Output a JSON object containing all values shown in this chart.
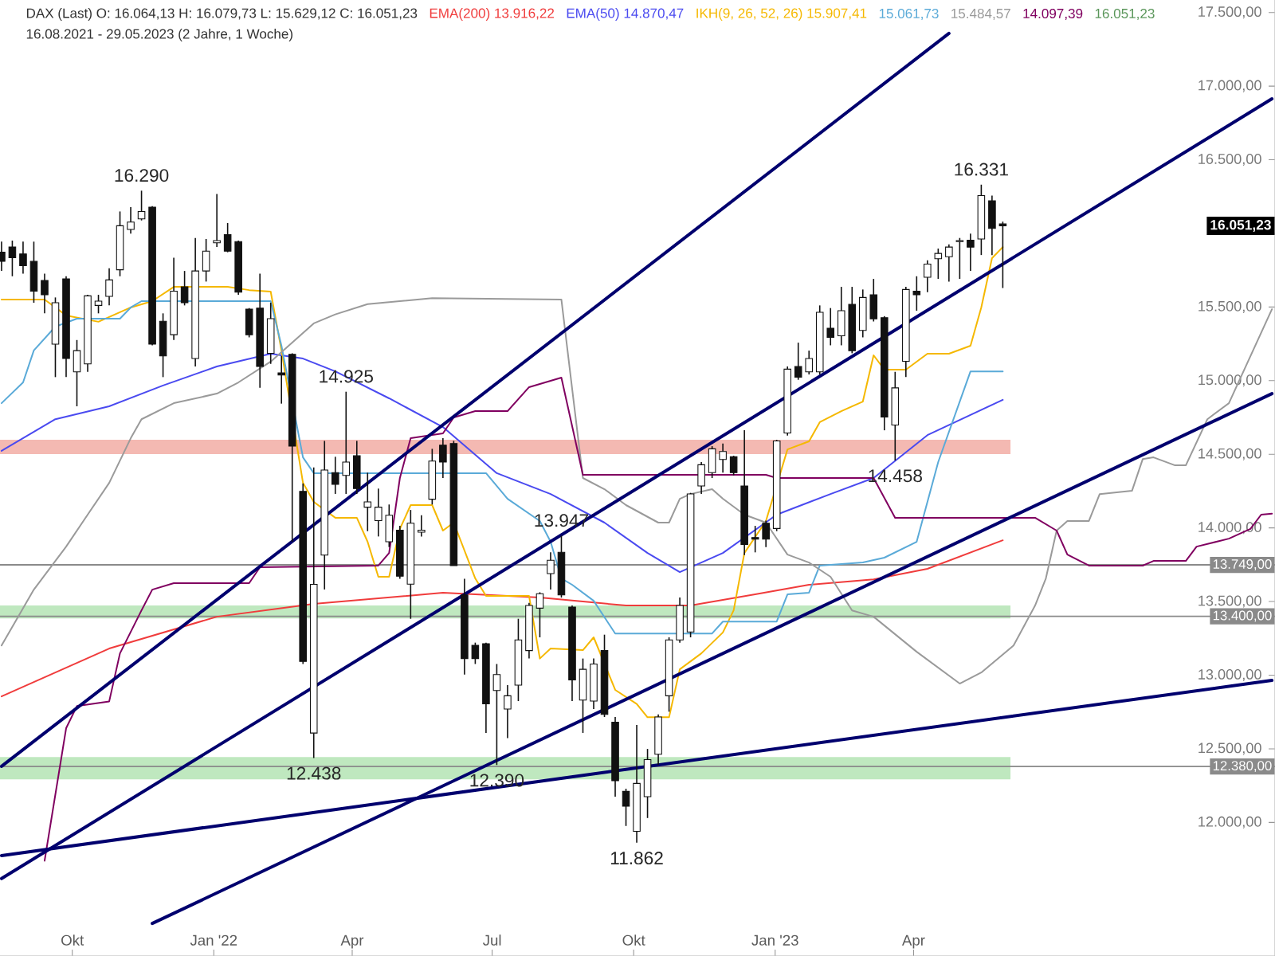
{
  "chart_data": {
    "type": "candlestick",
    "title": "DAX (Last)  O: 16.064,13  H: 16.079,73  L: 15.629,12  C: 16.051,23",
    "subtitle": "16.08.2021 - 29.05.2023  (2 Jahre, 1 Woche)",
    "xlim": [
      "2021-08-15",
      "2023-11-22"
    ],
    "ylim": [
      11093,
      17585
    ],
    "xticks": [
      {
        "value": "2021-10-01",
        "label": "Okt"
      },
      {
        "value": "2022-01-01",
        "label": "Jan '22"
      },
      {
        "value": "2022-04-01",
        "label": "Apr"
      },
      {
        "value": "2022-07-01",
        "label": "Jul"
      },
      {
        "value": "2022-10-01",
        "label": "Okt"
      },
      {
        "value": "2023-01-01",
        "label": "Jan '23"
      },
      {
        "value": "2023-04-01",
        "label": "Apr"
      }
    ],
    "yticks": [
      {
        "value": 12000,
        "label": "12.000,00"
      },
      {
        "value": 12500,
        "label": "12.500,00"
      },
      {
        "value": 13000,
        "label": "13.000,00"
      },
      {
        "value": 13500,
        "label": "13.500,00"
      },
      {
        "value": 14000,
        "label": "14.000,00"
      },
      {
        "value": 14500,
        "label": "14.500,00"
      },
      {
        "value": 15000,
        "label": "15.000,00"
      },
      {
        "value": 15500,
        "label": "15.500,00"
      },
      {
        "value": 16000,
        "label": null
      },
      {
        "value": 16500,
        "label": "16.500,00"
      },
      {
        "value": 17000,
        "label": "17.000,00"
      },
      {
        "value": 17500,
        "label": "17.500,00"
      }
    ],
    "legend": "top",
    "bands": [
      {
        "axis": "y",
        "from": 14501,
        "to": 14599,
        "color": "#f4b9b2"
      },
      {
        "axis": "y",
        "from": 13386,
        "to": 13473,
        "color": "#bfe8bf"
      },
      {
        "axis": "y",
        "from": 12292,
        "to": 12444,
        "color": "#bfe8bf"
      }
    ],
    "ref_lines": [
      {
        "axis": "y",
        "value": 13749,
        "label": "13.749,00",
        "color": "#8a8a8a"
      },
      {
        "axis": "y",
        "value": 13400,
        "label": "13.400,00",
        "color": "#8a8a8a"
      },
      {
        "axis": "y",
        "value": 12380,
        "label": "12.380,00",
        "color": "#8a8a8a"
      }
    ],
    "series": [
      {
        "type": "line",
        "name": "EMA(200) 13.916,22",
        "color": "#f03c3c",
        "x": [
          "2021-08-16",
          "2021-10-25",
          "2022-01-03",
          "2022-03-07",
          "2022-05-30",
          "2022-08-01",
          "2022-09-26",
          "2022-11-07",
          "2022-12-19",
          "2023-01-23",
          "2023-03-06",
          "2023-04-10",
          "2023-05-29"
        ],
        "values": [
          12856,
          13181,
          13397,
          13484,
          13560,
          13527,
          13473,
          13473,
          13549,
          13614,
          13650,
          13722,
          13916
        ]
      },
      {
        "type": "line",
        "name": "EMA(50) 14.870,47",
        "color": "#4a4af0",
        "x": [
          "2021-08-16",
          "2021-09-20",
          "2021-10-25",
          "2021-11-29",
          "2022-01-03",
          "2022-02-07",
          "2022-02-28",
          "2022-03-21",
          "2022-04-25",
          "2022-05-30",
          "2022-07-04",
          "2022-08-08",
          "2022-09-12",
          "2022-10-10",
          "2022-10-31",
          "2022-11-28",
          "2023-01-02",
          "2023-02-06",
          "2023-03-06",
          "2023-04-10",
          "2023-05-29"
        ],
        "values": [
          14523,
          14738,
          14826,
          14967,
          15096,
          15183,
          15150,
          15063,
          14880,
          14685,
          14372,
          14230,
          14036,
          13830,
          13700,
          13830,
          14090,
          14230,
          14339,
          14630,
          14870
        ]
      },
      {
        "type": "line",
        "name": "IKH(9, 26, 52, 26) 15.907,41",
        "color": "#f5b800",
        "x": [
          "2021-08-16",
          "2021-09-13",
          "2021-09-27",
          "2021-10-18",
          "2021-11-08",
          "2021-11-22",
          "2021-12-06",
          "2022-01-10",
          "2022-01-24",
          "2022-02-07",
          "2022-02-14",
          "2022-02-28",
          "2022-03-07",
          "2022-03-21",
          "2022-04-04",
          "2022-04-11",
          "2022-04-18",
          "2022-04-25",
          "2022-05-02",
          "2022-05-09",
          "2022-05-23",
          "2022-05-30",
          "2022-06-06",
          "2022-06-20",
          "2022-06-27",
          "2022-07-25",
          "2022-08-01",
          "2022-08-08",
          "2022-08-29",
          "2022-09-05",
          "2022-09-19",
          "2022-10-03",
          "2022-10-10",
          "2022-10-24",
          "2022-10-31",
          "2022-11-14",
          "2022-11-28",
          "2022-12-05",
          "2022-12-12",
          "2022-12-26",
          "2023-01-09",
          "2023-01-23",
          "2023-01-30",
          "2023-02-13",
          "2023-02-27",
          "2023-03-06",
          "2023-03-13",
          "2023-03-27",
          "2023-04-10",
          "2023-04-24",
          "2023-05-08",
          "2023-05-15",
          "2023-05-22",
          "2023-05-29"
        ],
        "values": [
          15551,
          15551,
          15443,
          15400,
          15497,
          15540,
          15637,
          15637,
          15615,
          15605,
          15205,
          14306,
          14177,
          14069,
          14069,
          13906,
          13668,
          13668,
          13993,
          14155,
          14155,
          13982,
          14036,
          13657,
          13538,
          13538,
          13113,
          13181,
          13170,
          13257,
          12900,
          12805,
          12714,
          12714,
          13040,
          13148,
          13290,
          13440,
          13830,
          14047,
          14533,
          14588,
          14718,
          14793,
          14858,
          15172,
          15075,
          15075,
          15183,
          15183,
          15237,
          15497,
          15832,
          15907
        ]
      },
      {
        "type": "line",
        "name": "15.061,73",
        "color": "#5aaad8",
        "x": [
          "2021-08-16",
          "2021-08-30",
          "2021-09-06",
          "2021-09-20",
          "2021-10-04",
          "2021-11-01",
          "2021-11-08",
          "2021-11-15",
          "2022-02-07",
          "2022-02-14",
          "2022-02-28",
          "2022-03-07",
          "2022-06-27",
          "2022-07-11",
          "2022-08-01",
          "2022-08-08",
          "2022-08-15",
          "2022-08-22",
          "2022-09-05",
          "2022-09-19",
          "2022-11-21",
          "2022-11-28",
          "2023-01-02",
          "2023-01-09",
          "2023-01-23",
          "2023-01-30",
          "2023-02-27",
          "2023-03-13",
          "2023-04-03",
          "2023-04-17",
          "2023-05-08",
          "2023-05-29"
        ],
        "values": [
          14847,
          14988,
          15205,
          15367,
          15421,
          15421,
          15497,
          15540,
          15540,
          15237,
          14479,
          14372,
          14372,
          14198,
          14047,
          13906,
          13657,
          13614,
          13505,
          13283,
          13283,
          13364,
          13364,
          13549,
          13560,
          13744,
          13765,
          13798,
          13906,
          14447,
          15063,
          15062
        ]
      },
      {
        "type": "line",
        "name": "15.484,57",
        "color": "#9a9a9a",
        "x": [
          "2021-08-16",
          "2021-09-06",
          "2021-09-27",
          "2021-10-11",
          "2021-10-25",
          "2021-11-08",
          "2021-11-15",
          "2021-12-06",
          "2022-01-03",
          "2022-01-17",
          "2022-02-07",
          "2022-02-21",
          "2022-03-07",
          "2022-03-21",
          "2022-04-11",
          "2022-05-23",
          "2022-08-15",
          "2022-08-29",
          "2022-09-12",
          "2022-09-26",
          "2022-10-17",
          "2022-10-24",
          "2022-10-31",
          "2022-11-07",
          "2022-11-21",
          "2022-11-28",
          "2022-12-05",
          "2022-12-12",
          "2022-12-26",
          "2023-01-09",
          "2023-01-23",
          "2023-02-06",
          "2023-02-20",
          "2023-03-06",
          "2023-03-20",
          "2023-04-03",
          "2023-05-01",
          "2023-05-15",
          "2023-06-05",
          "2023-06-19",
          "2023-06-26",
          "2023-07-03",
          "2023-07-10",
          "2023-07-24",
          "2023-07-31",
          "2023-08-21",
          "2023-08-28",
          "2023-09-04",
          "2023-09-18",
          "2023-09-25",
          "2023-10-09",
          "2023-10-23",
          "2023-11-20"
        ],
        "values": [
          13202,
          13581,
          13873,
          14090,
          14306,
          14609,
          14738,
          14847,
          14912,
          14988,
          15129,
          15259,
          15389,
          15450,
          15520,
          15560,
          15551,
          14339,
          14263,
          14155,
          14036,
          14036,
          14198,
          14230,
          14263,
          14198,
          14144,
          14090,
          14036,
          13819,
          13765,
          13668,
          13440,
          13397,
          13278,
          13159,
          12943,
          13018,
          13202,
          13473,
          13657,
          13982,
          14047,
          14047,
          14230,
          14252,
          14468,
          14479,
          14425,
          14425,
          14738,
          14847,
          15485
        ]
      },
      {
        "type": "line",
        "name": "14.097,39",
        "color": "#800060",
        "x": [
          "2021-09-13",
          "2021-09-27",
          "2021-10-04",
          "2021-10-25",
          "2021-11-01",
          "2021-11-15",
          "2021-11-22",
          "2021-12-06",
          "2022-01-24",
          "2022-01-31",
          "2022-04-18",
          "2022-04-25",
          "2022-05-02",
          "2022-05-09",
          "2022-05-30",
          "2022-06-06",
          "2022-06-20",
          "2022-07-11",
          "2022-07-25",
          "2022-08-15",
          "2022-08-29",
          "2022-12-26",
          "2023-01-02",
          "2023-03-06",
          "2023-03-20",
          "2023-06-19",
          "2023-07-03",
          "2023-07-10",
          "2023-07-24",
          "2023-08-28",
          "2023-09-04",
          "2023-09-25",
          "2023-10-02",
          "2023-10-23",
          "2023-11-06",
          "2023-11-13",
          "2023-11-20"
        ],
        "values": [
          11740,
          12640,
          12790,
          12822,
          13148,
          13440,
          13581,
          13625,
          13625,
          13733,
          13744,
          13830,
          14339,
          14609,
          14642,
          14750,
          14793,
          14793,
          14956,
          15021,
          14361,
          14361,
          14339,
          14339,
          14069,
          14069,
          13982,
          13819,
          13744,
          13744,
          13776,
          13776,
          13873,
          13927,
          13993,
          14090,
          14097
        ]
      },
      {
        "type": "line",
        "color": "#00006e",
        "x": [
          "2021-08-16",
          "2023-04-24"
        ],
        "values": [
          12381,
          17358
        ]
      },
      {
        "type": "line",
        "color": "#00006e",
        "x": [
          "2021-08-16",
          "2023-11-20"
        ],
        "values": [
          11619,
          16914
        ]
      },
      {
        "type": "line",
        "color": "#00006e",
        "x": [
          "2021-08-16",
          "2023-11-20"
        ],
        "values": [
          11775,
          12965
        ]
      },
      {
        "type": "line",
        "color": "#00006e",
        "x": [
          "2021-11-22",
          "2023-11-20"
        ],
        "values": [
          11314,
          14912
        ]
      },
      {
        "color": "#111111",
        "x": [
          "2021-08-16",
          "2021-08-23",
          "2021-08-30",
          "2021-09-06",
          "2021-09-13",
          "2021-09-20",
          "2021-09-27",
          "2021-10-04",
          "2021-10-11",
          "2021-10-18",
          "2021-10-25",
          "2021-11-01",
          "2021-11-08",
          "2021-11-15",
          "2021-11-22",
          "2021-11-29",
          "2021-12-06",
          "2021-12-13",
          "2021-12-20",
          "2021-12-27",
          "2022-01-03",
          "2022-01-10",
          "2022-01-17",
          "2022-01-24",
          "2022-01-31",
          "2022-02-07",
          "2022-02-14",
          "2022-02-21",
          "2022-02-28",
          "2022-03-07",
          "2022-03-14",
          "2022-03-21",
          "2022-03-28",
          "2022-04-04",
          "2022-04-11",
          "2022-04-18",
          "2022-04-25",
          "2022-05-02",
          "2022-05-09",
          "2022-05-16",
          "2022-05-23",
          "2022-05-30",
          "2022-06-06",
          "2022-06-13",
          "2022-06-20",
          "2022-06-27",
          "2022-07-04",
          "2022-07-11",
          "2022-07-18",
          "2022-07-25",
          "2022-08-01",
          "2022-08-08",
          "2022-08-15",
          "2022-08-22",
          "2022-08-29",
          "2022-09-05",
          "2022-09-12",
          "2022-09-19",
          "2022-09-26",
          "2022-10-03",
          "2022-10-10",
          "2022-10-17",
          "2022-10-24",
          "2022-10-31",
          "2022-11-07",
          "2022-11-14",
          "2022-11-21",
          "2022-11-28",
          "2022-12-05",
          "2022-12-12",
          "2022-12-19",
          "2022-12-26",
          "2023-01-02",
          "2023-01-09",
          "2023-01-16",
          "2023-01-23",
          "2023-01-30",
          "2023-02-06",
          "2023-02-13",
          "2023-02-20",
          "2023-02-27",
          "2023-03-06",
          "2023-03-13",
          "2023-03-20",
          "2023-03-27",
          "2023-04-03",
          "2023-04-10",
          "2023-04-17",
          "2023-04-24",
          "2023-05-01",
          "2023-05-08",
          "2023-05-15",
          "2023-05-22",
          "2023-05-29"
        ],
        "ohlc": [
          [
            15872,
            15944,
            15745,
            15810
          ],
          [
            15908,
            15951,
            15709,
            15835
          ],
          [
            15861,
            15944,
            15727,
            15781
          ],
          [
            15810,
            15944,
            15529,
            15608
          ],
          [
            15680,
            15727,
            15457,
            15583
          ],
          [
            15248,
            15565,
            15024,
            15529
          ],
          [
            15691,
            15709,
            15024,
            15150
          ],
          [
            15060,
            15276,
            14826,
            15204
          ],
          [
            15114,
            15583,
            15060,
            15576
          ],
          [
            15511,
            15583,
            15457,
            15540
          ],
          [
            15572,
            15763,
            15511,
            15684
          ],
          [
            15753,
            16149,
            15709,
            16052
          ],
          [
            16027,
            16178,
            15998,
            16077
          ],
          [
            16099,
            16290,
            16088,
            16149
          ],
          [
            16178,
            16185,
            15240,
            15248
          ],
          [
            15403,
            15457,
            15024,
            15168
          ],
          [
            15312,
            15835,
            15276,
            15608
          ],
          [
            15637,
            15745,
            15511,
            15529
          ],
          [
            15150,
            15969,
            15096,
            15745
          ],
          [
            15745,
            15962,
            15673,
            15879
          ],
          [
            15936,
            16268,
            15908,
            15951
          ],
          [
            15991,
            16070,
            15872,
            15879
          ],
          [
            15944,
            15951,
            15583,
            15601
          ],
          [
            15486,
            15493,
            15294,
            15312
          ],
          [
            15493,
            15727,
            14952,
            15096
          ],
          [
            15186,
            15529,
            15114,
            15421
          ],
          [
            15053,
            15168,
            14844,
            15038
          ],
          [
            15179,
            15186,
            13906,
            14555
          ],
          [
            14248,
            14302,
            13076,
            13094
          ],
          [
            12607,
            14411,
            12438,
            13617
          ],
          [
            13816,
            14591,
            13582,
            14393
          ],
          [
            14375,
            14483,
            14231,
            14296
          ],
          [
            14357,
            14925,
            14231,
            14447
          ],
          [
            14490,
            14591,
            14231,
            14267
          ],
          [
            14141,
            14375,
            13978,
            14177
          ],
          [
            14050,
            14267,
            13942,
            14141
          ],
          [
            13906,
            14159,
            13870,
            14086
          ],
          [
            13985,
            14014,
            13654,
            13672
          ],
          [
            13618,
            14122,
            13383,
            14032
          ],
          [
            13971,
            14086,
            13942,
            13985
          ],
          [
            14195,
            14537,
            14159,
            14454
          ],
          [
            14562,
            14609,
            14339,
            14447
          ],
          [
            14573,
            14591,
            13744,
            13744
          ],
          [
            13545,
            13654,
            13004,
            13113
          ],
          [
            13203,
            13221,
            13076,
            13113
          ],
          [
            13214,
            13221,
            12608,
            12806
          ],
          [
            12896,
            13076,
            12390,
            13004
          ],
          [
            12770,
            12932,
            12572,
            12860
          ],
          [
            12932,
            13383,
            12824,
            13239
          ],
          [
            13167,
            13491,
            13113,
            13473
          ],
          [
            13455,
            13563,
            13257,
            13553
          ],
          [
            13690,
            13834,
            13582,
            13780
          ],
          [
            13834,
            13947,
            13527,
            13545
          ],
          [
            13462,
            13473,
            12824,
            12968
          ],
          [
            12831,
            13113,
            12608,
            13040
          ],
          [
            12824,
            13113,
            12770,
            13076
          ],
          [
            13167,
            13275,
            12716,
            12734
          ],
          [
            12680,
            12716,
            12175,
            12283
          ],
          [
            12211,
            12229,
            11976,
            12110
          ],
          [
            11940,
            12662,
            11862,
            12265
          ],
          [
            12175,
            12499,
            12030,
            12427
          ],
          [
            12463,
            12734,
            12391,
            12716
          ],
          [
            12860,
            13257,
            12752,
            13239
          ],
          [
            13239,
            13527,
            13221,
            13473
          ],
          [
            13293,
            14238,
            13257,
            14231
          ],
          [
            14285,
            14447,
            14231,
            14429
          ],
          [
            14375,
            14555,
            14339,
            14537
          ],
          [
            14465,
            14573,
            14375,
            14519
          ],
          [
            14483,
            14490,
            14357,
            14375
          ],
          [
            14285,
            14663,
            13816,
            13888
          ],
          [
            13935,
            14014,
            13834,
            13924
          ],
          [
            14032,
            14050,
            13870,
            13924
          ],
          [
            13996,
            14598,
            13978,
            14591
          ],
          [
            14645,
            15096,
            14627,
            15078
          ],
          [
            15096,
            15258,
            15006,
            15024
          ],
          [
            15060,
            15204,
            15042,
            15150
          ],
          [
            15060,
            15511,
            15042,
            15464
          ],
          [
            15356,
            15493,
            15240,
            15294
          ],
          [
            15305,
            15637,
            15240,
            15475
          ],
          [
            15518,
            15637,
            15186,
            15204
          ],
          [
            15341,
            15619,
            15294,
            15565
          ],
          [
            15583,
            15691,
            15402,
            15420
          ],
          [
            15428,
            15438,
            14663,
            14753
          ],
          [
            14699,
            15060,
            14458,
            14951
          ],
          [
            15132,
            15637,
            15024,
            15619
          ],
          [
            15608,
            15709,
            15475,
            15583
          ],
          [
            15702,
            15817,
            15601,
            15792
          ],
          [
            15828,
            15897,
            15691,
            15864
          ],
          [
            15842,
            15925,
            15673,
            15907
          ],
          [
            15944,
            15969,
            15691,
            15951
          ],
          [
            15954,
            15998,
            15745,
            15907
          ],
          [
            15962,
            16331,
            15853,
            16257
          ],
          [
            16221,
            16257,
            15853,
            16034
          ],
          [
            16064.13,
            16079.73,
            15629.12,
            16051.23
          ]
        ]
      }
    ],
    "annotations": [
      {
        "text": "16.290",
        "x": "2021-11-15",
        "y": 16290
      },
      {
        "text": "14.925",
        "x": "2022-03-28",
        "y": 14925
      },
      {
        "text": "12.438",
        "x": "2022-03-07",
        "y": 12438
      },
      {
        "text": "13.947",
        "x": "2022-08-15",
        "y": 13947
      },
      {
        "text": "12.390",
        "x": "2022-07-04",
        "y": 12390
      },
      {
        "text": "11.862",
        "x": "2022-10-03",
        "y": 11862
      },
      {
        "text": "16.331",
        "x": "2023-05-15",
        "y": 16331
      },
      {
        "text": "14.458",
        "x": "2023-03-20",
        "y": 14458
      },
      "16.051,23",
      "16.051,23"
    ]
  }
}
